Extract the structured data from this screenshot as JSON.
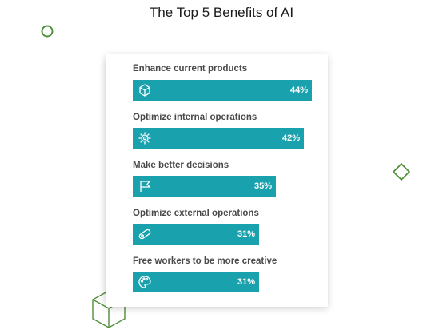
{
  "chart_data": {
    "type": "bar",
    "orientation": "horizontal",
    "title": "The Top 5 Benefits of AI",
    "categories": [
      "Enhance current products",
      "Optimize internal operations",
      "Make better decisions",
      "Optimize external operations",
      "Free workers to be more creative"
    ],
    "values": [
      44,
      42,
      35,
      31,
      31
    ],
    "value_labels": [
      "44%",
      "42%",
      "35%",
      "31%",
      "31%"
    ],
    "icons": [
      "cube-icon",
      "gear-icon",
      "flag-icon",
      "link-icon",
      "palette-icon"
    ],
    "unit": "%",
    "bar_color": "#1aa1ae",
    "grid": false,
    "legend": "none"
  },
  "colors": {
    "accent_green": "#4f8f3a",
    "text_dark": "#1a1a1a",
    "label_gray": "#4a4a4a"
  }
}
